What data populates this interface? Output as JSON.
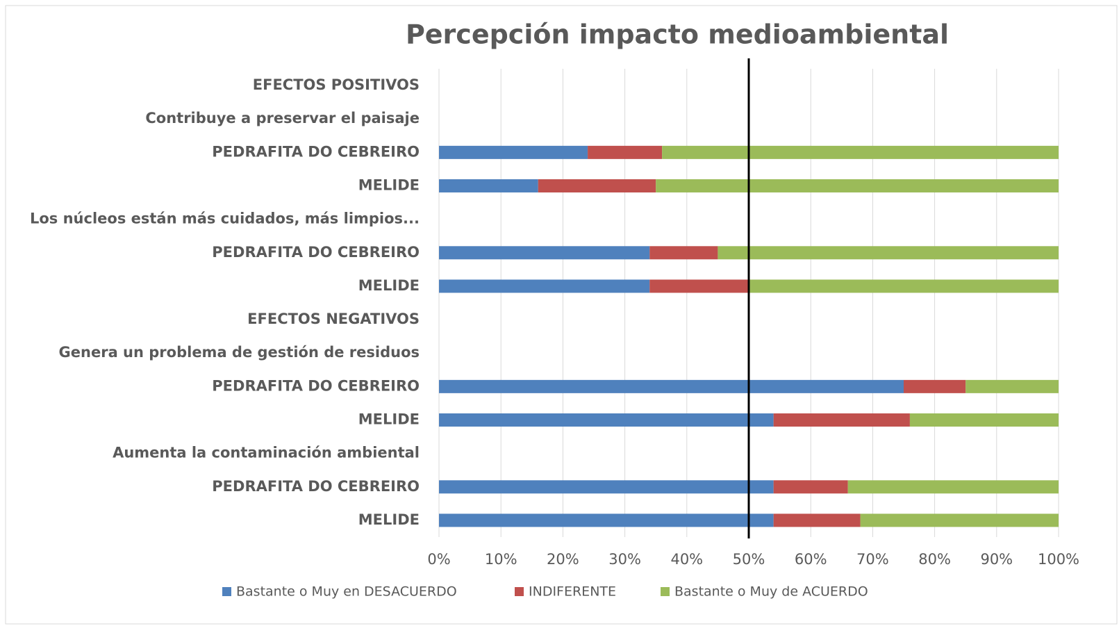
{
  "chart_data": {
    "type": "stacked_bar_horizontal",
    "title": "Percepción impacto medioambiental",
    "categories": [
      "EFECTOS POSITIVOS",
      "Contribuye a preservar el paisaje",
      "PEDRAFITA DO CEBREIRO",
      "MELIDE",
      "Los núcleos están más cuidados, más limpios...",
      "PEDRAFITA DO CEBREIRO",
      "MELIDE",
      "EFECTOS NEGATIVOS",
      "Genera un problema de gestión de residuos",
      "PEDRAFITA DO CEBREIRO",
      "MELIDE",
      "Aumenta la contaminación ambiental",
      "PEDRAFITA DO CEBREIRO",
      "MELIDE"
    ],
    "series": [
      {
        "name": "Bastante o Muy en DESACUERDO",
        "color": "#4f81bd",
        "values": [
          null,
          null,
          24,
          16,
          null,
          34,
          34,
          null,
          null,
          75,
          54,
          null,
          54,
          54
        ]
      },
      {
        "name": "INDIFERENTE",
        "color": "#c0504d",
        "values": [
          null,
          null,
          12,
          19,
          null,
          11,
          16,
          null,
          null,
          10,
          22,
          null,
          12,
          14
        ]
      },
      {
        "name": "Bastante o Muy de ACUERDO",
        "color": "#9bbb59",
        "values": [
          null,
          null,
          64,
          65,
          null,
          55,
          50,
          null,
          null,
          15,
          24,
          null,
          34,
          32
        ]
      }
    ],
    "xlim": [
      0,
      100
    ],
    "xticks": [
      {
        "value": 0,
        "label": "0%"
      },
      {
        "value": 10,
        "label": "10%"
      },
      {
        "value": 20,
        "label": "20%"
      },
      {
        "value": 30,
        "label": "30%"
      },
      {
        "value": 40,
        "label": "40%"
      },
      {
        "value": 50,
        "label": "50%"
      },
      {
        "value": 60,
        "label": "60%"
      },
      {
        "value": 70,
        "label": "70%"
      },
      {
        "value": 80,
        "label": "80%"
      },
      {
        "value": 90,
        "label": "90%"
      },
      {
        "value": 100,
        "label": "100%"
      }
    ],
    "reference_line": 50,
    "grid": true,
    "legend": "bottom"
  }
}
